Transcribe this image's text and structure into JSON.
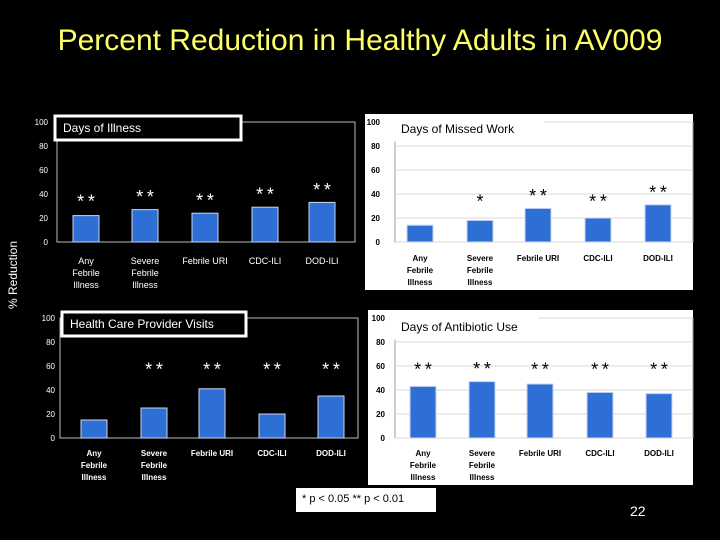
{
  "slide": {
    "title": "Percent Reduction in Healthy Adults in AV009",
    "y_axis_label": "% Reduction",
    "legend": "* p < 0.05   ** p < 0.01",
    "page_number": "22"
  },
  "colors": {
    "title": "#ffff66",
    "bar": "#2e6fd6",
    "bar_border": "#c9d6ee",
    "plot_bg": "#000000",
    "panel_bg": "#ffffff"
  },
  "chart_data": [
    {
      "type": "bar",
      "title": "Days of Illness",
      "categories": [
        "Any Febrile Illness",
        "Severe Febrile Illness",
        "Febrile URI",
        "CDC-ILI",
        "DOD-ILI"
      ],
      "values": [
        22,
        27,
        24,
        29,
        33
      ],
      "annotations": [
        "**",
        "**",
        "**",
        "**",
        "**"
      ],
      "yticks": [
        "100",
        "80",
        "60",
        "40",
        "20",
        "0"
      ],
      "ylim": [
        0,
        100
      ],
      "ylabel": "% Reduction"
    },
    {
      "type": "bar",
      "title": "Days of Missed Work",
      "categories": [
        "Any Febrile Illness",
        "Severe Febrile Illness",
        "Febrile URI",
        "CDC-ILI",
        "DOD-ILI"
      ],
      "values": [
        14,
        18,
        28,
        20,
        31
      ],
      "annotations": [
        "",
        "*",
        "**",
        "**",
        "**"
      ],
      "yticks": [
        "100",
        "80",
        "60",
        "40",
        "20",
        "0"
      ],
      "ylim": [
        0,
        100
      ]
    },
    {
      "type": "bar",
      "title": "Health Care Provider Visits",
      "categories": [
        "Any Febrile Illness",
        "Severe Febrile Illness",
        "Febrile URI",
        "CDC-ILI",
        "DOD-ILI"
      ],
      "values": [
        15,
        25,
        41,
        20,
        35
      ],
      "annotations": [
        "",
        "**",
        "**",
        "**",
        "**"
      ],
      "yticks": [
        "100",
        "80",
        "60",
        "40",
        "20",
        "0"
      ],
      "ylim": [
        0,
        100
      ]
    },
    {
      "type": "bar",
      "title": "Days of Antibiotic Use",
      "categories": [
        "Any Febrile Illness",
        "Severe Febrile Illness",
        "Febrile URI",
        "CDC-ILI",
        "DOD-ILI"
      ],
      "values": [
        43,
        47,
        45,
        38,
        37
      ],
      "annotations": [
        "**",
        "**",
        "**",
        "**",
        "**"
      ],
      "yticks": [
        "100",
        "80",
        "60",
        "40",
        "20",
        "0"
      ],
      "ylim": [
        0,
        100
      ]
    }
  ]
}
